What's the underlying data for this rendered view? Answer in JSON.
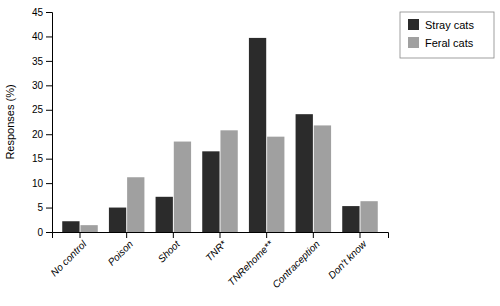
{
  "chart_data": {
    "type": "bar",
    "categories": [
      "No control",
      "Poison",
      "Shoot",
      "TNR*",
      "TNRehome**",
      "Contraception",
      "Don't know"
    ],
    "series": [
      {
        "name": "Stray cats",
        "color": "#2b2b2b",
        "values": [
          2.2,
          5.0,
          7.2,
          16.5,
          39.7,
          24.1,
          5.3
        ]
      },
      {
        "name": "Feral cats",
        "color": "#a0a0a0",
        "values": [
          1.4,
          11.2,
          18.5,
          20.8,
          19.5,
          21.8,
          6.3
        ]
      }
    ],
    "ylabel": "Responses (%)",
    "ylim": [
      0,
      45
    ],
    "yticks": [
      0,
      5,
      10,
      15,
      20,
      25,
      30,
      35,
      40,
      45
    ],
    "legend": "upper right",
    "grid": false
  }
}
